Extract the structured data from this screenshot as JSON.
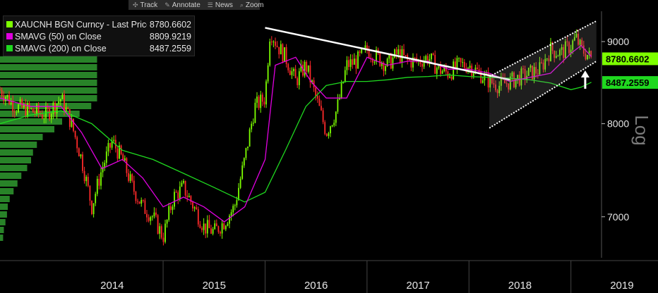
{
  "toolbar": {
    "items": [
      {
        "label": "Track",
        "icon": "crosshair-icon"
      },
      {
        "label": "Annotate",
        "icon": "pencil-icon"
      },
      {
        "label": "News",
        "icon": "news-icon"
      },
      {
        "label": "Zoom",
        "icon": "magnifier-icon"
      }
    ]
  },
  "legend": [
    {
      "name": "XAUCNH BGN Curncy - Last Price",
      "value": "8780.6602",
      "color": "#7dff00"
    },
    {
      "name": "SMAVG (50)  on Close",
      "value": "8809.9219",
      "color": "#e000e0"
    },
    {
      "name": "SMAVG (200)  on Close",
      "value": "8487.2559",
      "color": "#1fd81f"
    }
  ],
  "price_tags": [
    {
      "value": "8780.6602",
      "color": "#7dff00"
    },
    {
      "value": "8487.2559",
      "color": "#1fd81f"
    }
  ],
  "colors": {
    "background": "#000000",
    "up_candle": "#7dff00",
    "down_candle": "#ff2a2a",
    "sma50": "#e000e0",
    "sma200": "#1fd81f",
    "volume_profile": "#2f9a2f",
    "annotation": "#ffffff"
  },
  "chart_data": {
    "type": "line",
    "title": "",
    "xlabel": "",
    "ylabel": "Log",
    "y_scale": "log",
    "ylim": [
      6600,
      9400
    ],
    "xlim": [
      2013.4,
      2019.3
    ],
    "y_ticks": [
      7000,
      8000,
      9000
    ],
    "x_ticks": [
      "2014",
      "2015",
      "2016",
      "2017",
      "2018",
      "2019"
    ],
    "grid": false,
    "legend_position": "top-left",
    "series": [
      {
        "name": "XAUCNH BGN Curncy - Last Price",
        "x": [
          2013.4,
          2013.55,
          2013.7,
          2013.85,
          2014.0,
          2014.1,
          2014.2,
          2014.3,
          2014.4,
          2014.5,
          2014.6,
          2014.7,
          2014.8,
          2014.9,
          2015.0,
          2015.1,
          2015.2,
          2015.3,
          2015.4,
          2015.5,
          2015.6,
          2015.7,
          2015.8,
          2015.9,
          2016.0,
          2016.05,
          2016.12,
          2016.2,
          2016.3,
          2016.4,
          2016.5,
          2016.6,
          2016.7,
          2016.75,
          2016.8,
          2016.9,
          2017.0,
          2017.1,
          2017.2,
          2017.3,
          2017.4,
          2017.5,
          2017.6,
          2017.7,
          2017.8,
          2017.9,
          2018.0,
          2018.1,
          2018.2,
          2018.3,
          2018.4,
          2018.5,
          2018.6,
          2018.7,
          2018.8,
          2018.9,
          2019.0,
          2019.05,
          2019.1,
          2019.15,
          2019.2
        ],
        "values": [
          8400,
          8200,
          8150,
          8100,
          8300,
          8000,
          7600,
          7100,
          7500,
          7800,
          7600,
          7300,
          7100,
          7000,
          6800,
          7200,
          7300,
          7100,
          6900,
          6850,
          6950,
          7100,
          7600,
          8200,
          8300,
          9150,
          8950,
          8800,
          8500,
          8700,
          8300,
          7900,
          8150,
          8400,
          8700,
          8750,
          8900,
          8800,
          8700,
          8850,
          8750,
          8750,
          8800,
          8650,
          8600,
          8700,
          8700,
          8600,
          8500,
          8450,
          8500,
          8550,
          8600,
          8650,
          8900,
          8850,
          8950,
          9050,
          8900,
          8850,
          8780
        ]
      },
      {
        "name": "SMAVG (50)  on Close",
        "x": [
          2013.4,
          2013.7,
          2014.0,
          2014.2,
          2014.4,
          2014.6,
          2014.8,
          2015.0,
          2015.2,
          2015.4,
          2015.6,
          2015.8,
          2016.0,
          2016.1,
          2016.3,
          2016.45,
          2016.6,
          2016.8,
          2017.0,
          2017.2,
          2017.4,
          2017.6,
          2017.8,
          2018.0,
          2018.2,
          2018.4,
          2018.6,
          2018.8,
          2019.0,
          2019.1,
          2019.2
        ],
        "values": [
          8300,
          8200,
          8200,
          7900,
          7500,
          7600,
          7400,
          7100,
          7200,
          7100,
          6950,
          7100,
          7600,
          8700,
          8800,
          8500,
          8300,
          8300,
          8800,
          8700,
          8750,
          8750,
          8650,
          8650,
          8600,
          8500,
          8550,
          8600,
          8850,
          8950,
          8810
        ]
      },
      {
        "name": "SMAVG (200)  on Close",
        "x": [
          2013.4,
          2013.7,
          2014.0,
          2014.3,
          2014.6,
          2014.9,
          2015.2,
          2015.5,
          2015.8,
          2016.0,
          2016.2,
          2016.4,
          2016.6,
          2016.8,
          2017.0,
          2017.2,
          2017.4,
          2017.6,
          2017.8,
          2018.0,
          2018.2,
          2018.4,
          2018.6,
          2018.8,
          2019.0,
          2019.1,
          2019.2
        ],
        "values": [
          8000,
          8100,
          8150,
          8000,
          7700,
          7600,
          7450,
          7300,
          7150,
          7250,
          7700,
          8200,
          8450,
          8500,
          8500,
          8520,
          8550,
          8560,
          8580,
          8560,
          8550,
          8540,
          8520,
          8480,
          8400,
          8430,
          8490
        ]
      }
    ],
    "annotations": [
      {
        "type": "trendline",
        "from": [
          2016.0,
          9180
        ],
        "to": [
          2018.4,
          8520
        ]
      },
      {
        "type": "channel_line",
        "from": [
          2018.2,
          8560
        ],
        "to": [
          2019.25,
          9270
        ]
      },
      {
        "type": "channel_line",
        "from": [
          2018.2,
          7950
        ],
        "to": [
          2019.25,
          8750
        ]
      },
      {
        "type": "arrow",
        "at": [
          2019.14,
          8600
        ],
        "direction": "up"
      }
    ]
  }
}
